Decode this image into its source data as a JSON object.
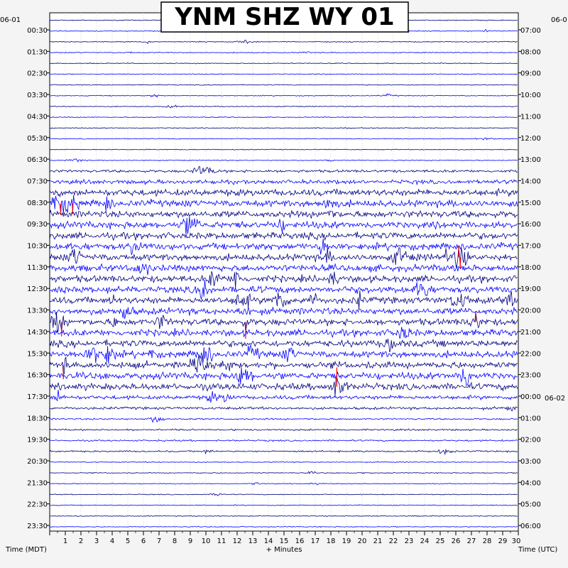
{
  "chart_data": {
    "type": "line",
    "title": "YNM SHZ WY 01",
    "xlabel": "+ Minutes",
    "ylabel_left": "Time (MDT)",
    "ylabel_right": "Time (UTC)",
    "date_left": "06-01",
    "date_right": "06-0",
    "date_right_next": "06-02",
    "xlim": [
      0,
      30
    ],
    "x_ticks": [
      "1",
      "2",
      "3",
      "4",
      "5",
      "6",
      "7",
      "8",
      "9",
      "10",
      "11",
      "12",
      "13",
      "14",
      "15",
      "16",
      "17",
      "18",
      "19",
      "20",
      "21",
      "22",
      "23",
      "24",
      "25",
      "26",
      "27",
      "28",
      "29",
      "30"
    ],
    "left_labels": [
      "00:30",
      "01:30",
      "02:30",
      "03:30",
      "04:30",
      "05:30",
      "06:30",
      "07:30",
      "08:30",
      "09:30",
      "10:30",
      "11:30",
      "12:30",
      "13:30",
      "14:30",
      "15:30",
      "16:30",
      "17:30",
      "18:30",
      "19:30",
      "20:30",
      "21:30",
      "22:30",
      "23:30"
    ],
    "right_labels": [
      "07:00",
      "08:00",
      "09:00",
      "10:00",
      "11:00",
      "12:00",
      "13:00",
      "14:00",
      "15:00",
      "16:00",
      "17:00",
      "18:00",
      "19:00",
      "20:00",
      "21:00",
      "22:00",
      "23:00",
      "00:00",
      "01:00",
      "02:00",
      "03:00",
      "04:00",
      "05:00",
      "06:00"
    ],
    "series_colors": [
      "#000080",
      "#0000ff"
    ],
    "clip_color": "#ff0000",
    "traces_count": 48
  }
}
